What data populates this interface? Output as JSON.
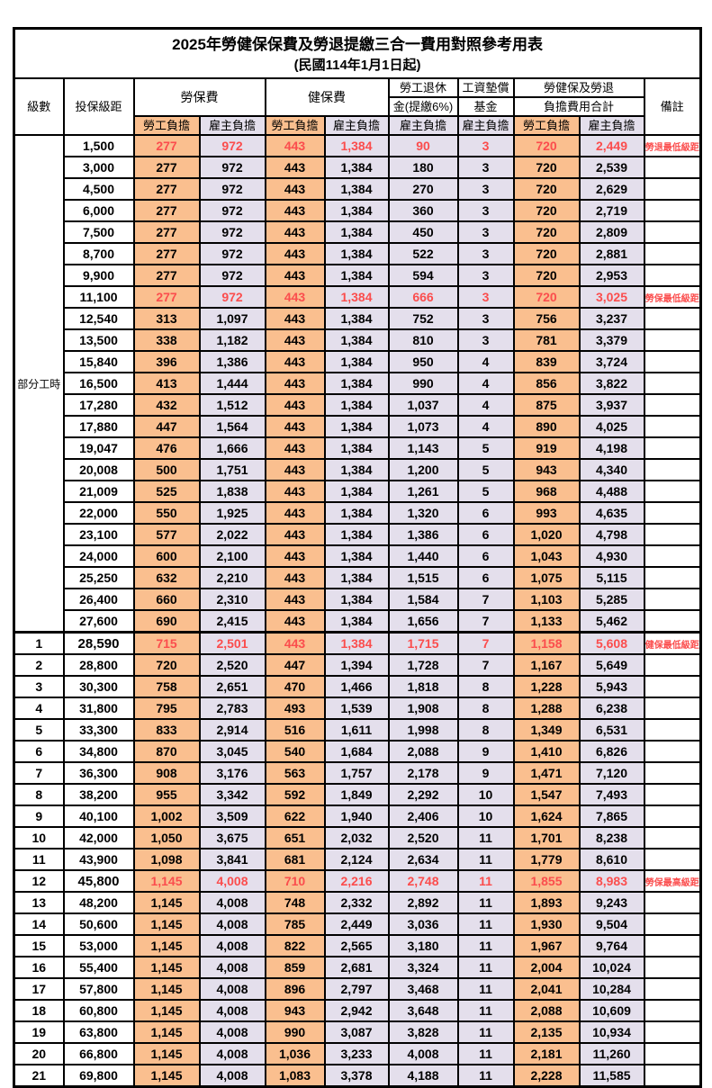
{
  "title": "2025年勞健保保費及勞退提繳三合一費用對照參考用表",
  "subtitle": "(民國114年1月1日起)",
  "header": {
    "level": "級數",
    "bracket": "投保級距",
    "labor": "勞保費",
    "health": "健保費",
    "pension_line1": "勞工退休",
    "pension_line2": "金(提繳6%)",
    "wage_fund_line1": "工資墊償",
    "wage_fund_line2": "基金",
    "total_line1": "勞健保及勞退",
    "total_line2": "負擔費用合計",
    "employee": "勞工負擔",
    "employer": "雇主負擔",
    "note": "備註",
    "part_time_label": "部分工時"
  },
  "colors": {
    "employee_bg": "#FABF8F",
    "employer_bg": "#E4DFEC",
    "highlight_red": "#FB4D4D"
  },
  "rows": [
    {
      "level": "",
      "bracket": "1,500",
      "labor_emp": "277",
      "labor_er": "972",
      "health_emp": "443",
      "health_er": "1,384",
      "pension_er": "90",
      "fund_er": "3",
      "total_emp": "720",
      "total_er": "2,449",
      "note": "勞退最低級距",
      "red": true,
      "section": false
    },
    {
      "level": "",
      "bracket": "3,000",
      "labor_emp": "277",
      "labor_er": "972",
      "health_emp": "443",
      "health_er": "1,384",
      "pension_er": "180",
      "fund_er": "3",
      "total_emp": "720",
      "total_er": "2,539",
      "note": "",
      "red": false,
      "section": false
    },
    {
      "level": "",
      "bracket": "4,500",
      "labor_emp": "277",
      "labor_er": "972",
      "health_emp": "443",
      "health_er": "1,384",
      "pension_er": "270",
      "fund_er": "3",
      "total_emp": "720",
      "total_er": "2,629",
      "note": "",
      "red": false,
      "section": false
    },
    {
      "level": "",
      "bracket": "6,000",
      "labor_emp": "277",
      "labor_er": "972",
      "health_emp": "443",
      "health_er": "1,384",
      "pension_er": "360",
      "fund_er": "3",
      "total_emp": "720",
      "total_er": "2,719",
      "note": "",
      "red": false,
      "section": false
    },
    {
      "level": "",
      "bracket": "7,500",
      "labor_emp": "277",
      "labor_er": "972",
      "health_emp": "443",
      "health_er": "1,384",
      "pension_er": "450",
      "fund_er": "3",
      "total_emp": "720",
      "total_er": "2,809",
      "note": "",
      "red": false,
      "section": false
    },
    {
      "level": "",
      "bracket": "8,700",
      "labor_emp": "277",
      "labor_er": "972",
      "health_emp": "443",
      "health_er": "1,384",
      "pension_er": "522",
      "fund_er": "3",
      "total_emp": "720",
      "total_er": "2,881",
      "note": "",
      "red": false,
      "section": false
    },
    {
      "level": "",
      "bracket": "9,900",
      "labor_emp": "277",
      "labor_er": "972",
      "health_emp": "443",
      "health_er": "1,384",
      "pension_er": "594",
      "fund_er": "3",
      "total_emp": "720",
      "total_er": "2,953",
      "note": "",
      "red": false,
      "section": false
    },
    {
      "level": "",
      "bracket": "11,100",
      "labor_emp": "277",
      "labor_er": "972",
      "health_emp": "443",
      "health_er": "1,384",
      "pension_er": "666",
      "fund_er": "3",
      "total_emp": "720",
      "total_er": "3,025",
      "note": "勞保最低級距",
      "red": true,
      "section": false
    },
    {
      "level": "",
      "bracket": "12,540",
      "labor_emp": "313",
      "labor_er": "1,097",
      "health_emp": "443",
      "health_er": "1,384",
      "pension_er": "752",
      "fund_er": "3",
      "total_emp": "756",
      "total_er": "3,237",
      "note": "",
      "red": false,
      "section": false
    },
    {
      "level": "",
      "bracket": "13,500",
      "labor_emp": "338",
      "labor_er": "1,182",
      "health_emp": "443",
      "health_er": "1,384",
      "pension_er": "810",
      "fund_er": "3",
      "total_emp": "781",
      "total_er": "3,379",
      "note": "",
      "red": false,
      "section": false
    },
    {
      "level": "",
      "bracket": "15,840",
      "labor_emp": "396",
      "labor_er": "1,386",
      "health_emp": "443",
      "health_er": "1,384",
      "pension_er": "950",
      "fund_er": "4",
      "total_emp": "839",
      "total_er": "3,724",
      "note": "",
      "red": false,
      "section": false
    },
    {
      "level": "",
      "bracket": "16,500",
      "labor_emp": "413",
      "labor_er": "1,444",
      "health_emp": "443",
      "health_er": "1,384",
      "pension_er": "990",
      "fund_er": "4",
      "total_emp": "856",
      "total_er": "3,822",
      "note": "",
      "red": false,
      "section": false
    },
    {
      "level": "",
      "bracket": "17,280",
      "labor_emp": "432",
      "labor_er": "1,512",
      "health_emp": "443",
      "health_er": "1,384",
      "pension_er": "1,037",
      "fund_er": "4",
      "total_emp": "875",
      "total_er": "3,937",
      "note": "",
      "red": false,
      "section": false
    },
    {
      "level": "",
      "bracket": "17,880",
      "labor_emp": "447",
      "labor_er": "1,564",
      "health_emp": "443",
      "health_er": "1,384",
      "pension_er": "1,073",
      "fund_er": "4",
      "total_emp": "890",
      "total_er": "4,025",
      "note": "",
      "red": false,
      "section": false
    },
    {
      "level": "",
      "bracket": "19,047",
      "labor_emp": "476",
      "labor_er": "1,666",
      "health_emp": "443",
      "health_er": "1,384",
      "pension_er": "1,143",
      "fund_er": "5",
      "total_emp": "919",
      "total_er": "4,198",
      "note": "",
      "red": false,
      "section": false
    },
    {
      "level": "",
      "bracket": "20,008",
      "labor_emp": "500",
      "labor_er": "1,751",
      "health_emp": "443",
      "health_er": "1,384",
      "pension_er": "1,200",
      "fund_er": "5",
      "total_emp": "943",
      "total_er": "4,340",
      "note": "",
      "red": false,
      "section": false
    },
    {
      "level": "",
      "bracket": "21,009",
      "labor_emp": "525",
      "labor_er": "1,838",
      "health_emp": "443",
      "health_er": "1,384",
      "pension_er": "1,261",
      "fund_er": "5",
      "total_emp": "968",
      "total_er": "4,488",
      "note": "",
      "red": false,
      "section": false
    },
    {
      "level": "",
      "bracket": "22,000",
      "labor_emp": "550",
      "labor_er": "1,925",
      "health_emp": "443",
      "health_er": "1,384",
      "pension_er": "1,320",
      "fund_er": "6",
      "total_emp": "993",
      "total_er": "4,635",
      "note": "",
      "red": false,
      "section": false
    },
    {
      "level": "",
      "bracket": "23,100",
      "labor_emp": "577",
      "labor_er": "2,022",
      "health_emp": "443",
      "health_er": "1,384",
      "pension_er": "1,386",
      "fund_er": "6",
      "total_emp": "1,020",
      "total_er": "4,798",
      "note": "",
      "red": false,
      "section": false
    },
    {
      "level": "",
      "bracket": "24,000",
      "labor_emp": "600",
      "labor_er": "2,100",
      "health_emp": "443",
      "health_er": "1,384",
      "pension_er": "1,440",
      "fund_er": "6",
      "total_emp": "1,043",
      "total_er": "4,930",
      "note": "",
      "red": false,
      "section": false
    },
    {
      "level": "",
      "bracket": "25,250",
      "labor_emp": "632",
      "labor_er": "2,210",
      "health_emp": "443",
      "health_er": "1,384",
      "pension_er": "1,515",
      "fund_er": "6",
      "total_emp": "1,075",
      "total_er": "5,115",
      "note": "",
      "red": false,
      "section": false
    },
    {
      "level": "",
      "bracket": "26,400",
      "labor_emp": "660",
      "labor_er": "2,310",
      "health_emp": "443",
      "health_er": "1,384",
      "pension_er": "1,584",
      "fund_er": "7",
      "total_emp": "1,103",
      "total_er": "5,285",
      "note": "",
      "red": false,
      "section": false
    },
    {
      "level": "",
      "bracket": "27,600",
      "labor_emp": "690",
      "labor_er": "2,415",
      "health_emp": "443",
      "health_er": "1,384",
      "pension_er": "1,656",
      "fund_er": "7",
      "total_emp": "1,133",
      "total_er": "5,462",
      "note": "",
      "red": false,
      "section": false
    },
    {
      "level": "1",
      "bracket": "28,590",
      "labor_emp": "715",
      "labor_er": "2,501",
      "health_emp": "443",
      "health_er": "1,384",
      "pension_er": "1,715",
      "fund_er": "7",
      "total_emp": "1,158",
      "total_er": "5,608",
      "note": "健保最低級距",
      "red": true,
      "section": true,
      "big": true
    },
    {
      "level": "2",
      "bracket": "28,800",
      "labor_emp": "720",
      "labor_er": "2,520",
      "health_emp": "447",
      "health_er": "1,394",
      "pension_er": "1,728",
      "fund_er": "7",
      "total_emp": "1,167",
      "total_er": "5,649",
      "note": "",
      "red": false,
      "section": false
    },
    {
      "level": "3",
      "bracket": "30,300",
      "labor_emp": "758",
      "labor_er": "2,651",
      "health_emp": "470",
      "health_er": "1,466",
      "pension_er": "1,818",
      "fund_er": "8",
      "total_emp": "1,228",
      "total_er": "5,943",
      "note": "",
      "red": false,
      "section": false
    },
    {
      "level": "4",
      "bracket": "31,800",
      "labor_emp": "795",
      "labor_er": "2,783",
      "health_emp": "493",
      "health_er": "1,539",
      "pension_er": "1,908",
      "fund_er": "8",
      "total_emp": "1,288",
      "total_er": "6,238",
      "note": "",
      "red": false,
      "section": false
    },
    {
      "level": "5",
      "bracket": "33,300",
      "labor_emp": "833",
      "labor_er": "2,914",
      "health_emp": "516",
      "health_er": "1,611",
      "pension_er": "1,998",
      "fund_er": "8",
      "total_emp": "1,349",
      "total_er": "6,531",
      "note": "",
      "red": false,
      "section": false
    },
    {
      "level": "6",
      "bracket": "34,800",
      "labor_emp": "870",
      "labor_er": "3,045",
      "health_emp": "540",
      "health_er": "1,684",
      "pension_er": "2,088",
      "fund_er": "9",
      "total_emp": "1,410",
      "total_er": "6,826",
      "note": "",
      "red": false,
      "section": false
    },
    {
      "level": "7",
      "bracket": "36,300",
      "labor_emp": "908",
      "labor_er": "3,176",
      "health_emp": "563",
      "health_er": "1,757",
      "pension_er": "2,178",
      "fund_er": "9",
      "total_emp": "1,471",
      "total_er": "7,120",
      "note": "",
      "red": false,
      "section": false
    },
    {
      "level": "8",
      "bracket": "38,200",
      "labor_emp": "955",
      "labor_er": "3,342",
      "health_emp": "592",
      "health_er": "1,849",
      "pension_er": "2,292",
      "fund_er": "10",
      "total_emp": "1,547",
      "total_er": "7,493",
      "note": "",
      "red": false,
      "section": false
    },
    {
      "level": "9",
      "bracket": "40,100",
      "labor_emp": "1,002",
      "labor_er": "3,509",
      "health_emp": "622",
      "health_er": "1,940",
      "pension_er": "2,406",
      "fund_er": "10",
      "total_emp": "1,624",
      "total_er": "7,865",
      "note": "",
      "red": false,
      "section": false
    },
    {
      "level": "10",
      "bracket": "42,000",
      "labor_emp": "1,050",
      "labor_er": "3,675",
      "health_emp": "651",
      "health_er": "2,032",
      "pension_er": "2,520",
      "fund_er": "11",
      "total_emp": "1,701",
      "total_er": "8,238",
      "note": "",
      "red": false,
      "section": false
    },
    {
      "level": "11",
      "bracket": "43,900",
      "labor_emp": "1,098",
      "labor_er": "3,841",
      "health_emp": "681",
      "health_er": "2,124",
      "pension_er": "2,634",
      "fund_er": "11",
      "total_emp": "1,779",
      "total_er": "8,610",
      "note": "",
      "red": false,
      "section": false
    },
    {
      "level": "12",
      "bracket": "45,800",
      "labor_emp": "1,145",
      "labor_er": "4,008",
      "health_emp": "710",
      "health_er": "2,216",
      "pension_er": "2,748",
      "fund_er": "11",
      "total_emp": "1,855",
      "total_er": "8,983",
      "note": "勞保最高級距",
      "red": true,
      "section": false,
      "big": true
    },
    {
      "level": "13",
      "bracket": "48,200",
      "labor_emp": "1,145",
      "labor_er": "4,008",
      "health_emp": "748",
      "health_er": "2,332",
      "pension_er": "2,892",
      "fund_er": "11",
      "total_emp": "1,893",
      "total_er": "9,243",
      "note": "",
      "red": false,
      "section": false
    },
    {
      "level": "14",
      "bracket": "50,600",
      "labor_emp": "1,145",
      "labor_er": "4,008",
      "health_emp": "785",
      "health_er": "2,449",
      "pension_er": "3,036",
      "fund_er": "11",
      "total_emp": "1,930",
      "total_er": "9,504",
      "note": "",
      "red": false,
      "section": false
    },
    {
      "level": "15",
      "bracket": "53,000",
      "labor_emp": "1,145",
      "labor_er": "4,008",
      "health_emp": "822",
      "health_er": "2,565",
      "pension_er": "3,180",
      "fund_er": "11",
      "total_emp": "1,967",
      "total_er": "9,764",
      "note": "",
      "red": false,
      "section": false
    },
    {
      "level": "16",
      "bracket": "55,400",
      "labor_emp": "1,145",
      "labor_er": "4,008",
      "health_emp": "859",
      "health_er": "2,681",
      "pension_er": "3,324",
      "fund_er": "11",
      "total_emp": "2,004",
      "total_er": "10,024",
      "note": "",
      "red": false,
      "section": false
    },
    {
      "level": "17",
      "bracket": "57,800",
      "labor_emp": "1,145",
      "labor_er": "4,008",
      "health_emp": "896",
      "health_er": "2,797",
      "pension_er": "3,468",
      "fund_er": "11",
      "total_emp": "2,041",
      "total_er": "10,284",
      "note": "",
      "red": false,
      "section": false
    },
    {
      "level": "18",
      "bracket": "60,800",
      "labor_emp": "1,145",
      "labor_er": "4,008",
      "health_emp": "943",
      "health_er": "2,942",
      "pension_er": "3,648",
      "fund_er": "11",
      "total_emp": "2,088",
      "total_er": "10,609",
      "note": "",
      "red": false,
      "section": false
    },
    {
      "level": "19",
      "bracket": "63,800",
      "labor_emp": "1,145",
      "labor_er": "4,008",
      "health_emp": "990",
      "health_er": "3,087",
      "pension_er": "3,828",
      "fund_er": "11",
      "total_emp": "2,135",
      "total_er": "10,934",
      "note": "",
      "red": false,
      "section": false
    },
    {
      "level": "20",
      "bracket": "66,800",
      "labor_emp": "1,145",
      "labor_er": "4,008",
      "health_emp": "1,036",
      "health_er": "3,233",
      "pension_er": "4,008",
      "fund_er": "11",
      "total_emp": "2,181",
      "total_er": "11,260",
      "note": "",
      "red": false,
      "section": false
    },
    {
      "level": "21",
      "bracket": "69,800",
      "labor_emp": "1,145",
      "labor_er": "4,008",
      "health_emp": "1,083",
      "health_er": "3,378",
      "pension_er": "4,188",
      "fund_er": "11",
      "total_emp": "2,228",
      "total_er": "11,585",
      "note": "",
      "red": false,
      "section": false
    }
  ]
}
